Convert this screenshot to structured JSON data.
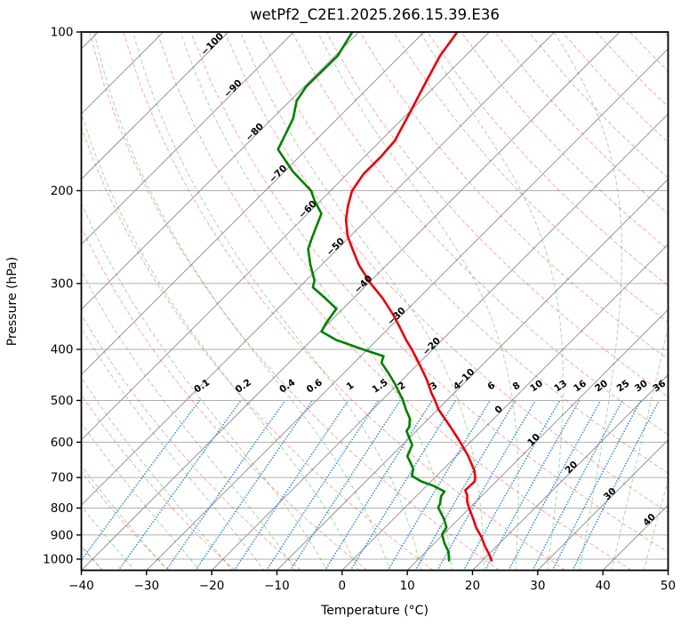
{
  "window": {
    "title": "wetPf2_C2E1.2025.266.15.39.E36"
  },
  "chart_data": {
    "type": "skewt-log-p",
    "title": "wetPf2_C2E1.2025.266.15.39.E36",
    "xlabel": "Temperature (°C)",
    "ylabel": "Pressure (hPa)",
    "xlim": [
      -40,
      50
    ],
    "x_ticks": [
      -40,
      -30,
      -20,
      -10,
      0,
      10,
      20,
      30,
      40,
      50
    ],
    "pressure_lim": [
      100,
      1050
    ],
    "pressure_ticks": [
      100,
      200,
      300,
      400,
      500,
      600,
      700,
      800,
      900,
      1000
    ],
    "grid": true,
    "skew_deg": 45,
    "isotherm_step_c": 10,
    "isotherm_labels": [
      -100,
      -90,
      -80,
      -70,
      -60,
      -50,
      -40,
      -30,
      -20,
      -10,
      0,
      10,
      20,
      30,
      40
    ],
    "dry_adiabats_c_at_1000hpa": {
      "start": -40,
      "end": 200,
      "step": 10
    },
    "moist_adiabats_c_at_1000hpa": {
      "start": -40,
      "end": 50,
      "step": 5
    },
    "mixing_ratio_lines_g_per_kg": [
      0.1,
      0.2,
      0.4,
      0.6,
      1,
      1.5,
      2,
      3,
      4,
      6,
      8,
      10,
      13,
      16,
      20,
      25,
      30,
      36
    ],
    "series": [
      {
        "name": "temperature",
        "color": "#e8000b",
        "points_p_hpa_t_c": [
          [
            100,
            -64.9
          ],
          [
            111,
            -63.9
          ],
          [
            127,
            -61.7
          ],
          [
            144,
            -59.6
          ],
          [
            161,
            -57.8
          ],
          [
            172,
            -57.5
          ],
          [
            186,
            -57.5
          ],
          [
            200,
            -56.7
          ],
          [
            213,
            -55.1
          ],
          [
            227,
            -53.2
          ],
          [
            244,
            -50.4
          ],
          [
            258,
            -47.7
          ],
          [
            277,
            -44.2
          ],
          [
            300,
            -39.6
          ],
          [
            320,
            -35.5
          ],
          [
            343,
            -31.5
          ],
          [
            360,
            -28.9
          ],
          [
            384,
            -25.5
          ],
          [
            400,
            -23.2
          ],
          [
            424,
            -20.1
          ],
          [
            444,
            -17.7
          ],
          [
            459,
            -16.0
          ],
          [
            485,
            -13.4
          ],
          [
            500,
            -11.8
          ],
          [
            520,
            -9.9
          ],
          [
            561,
            -5.4
          ],
          [
            595,
            -2.0
          ],
          [
            636,
            1.7
          ],
          [
            678,
            4.9
          ],
          [
            697,
            6.0
          ],
          [
            712,
            6.7
          ],
          [
            740,
            6.6
          ],
          [
            757,
            7.7
          ],
          [
            777,
            8.6
          ],
          [
            798,
            9.8
          ],
          [
            840,
            12.3
          ],
          [
            873,
            14.1
          ],
          [
            905,
            16.1
          ],
          [
            943,
            18.1
          ],
          [
            981,
            20.2
          ],
          [
            1006,
            21.4
          ]
        ]
      },
      {
        "name": "dewpoint",
        "color": "#007f00",
        "points_p_hpa_t_c": [
          [
            100,
            -81.0
          ],
          [
            111,
            -79.6
          ],
          [
            127,
            -79.7
          ],
          [
            135,
            -79.0
          ],
          [
            146,
            -76.8
          ],
          [
            167,
            -74.4
          ],
          [
            184,
            -68.7
          ],
          [
            200,
            -63.0
          ],
          [
            209,
            -60.9
          ],
          [
            221,
            -57.9
          ],
          [
            246,
            -55.6
          ],
          [
            258,
            -54.5
          ],
          [
            276,
            -51.8
          ],
          [
            296,
            -48.7
          ],
          [
            305,
            -47.9
          ],
          [
            320,
            -44.3
          ],
          [
            335,
            -41.0
          ],
          [
            356,
            -40.4
          ],
          [
            370,
            -39.8
          ],
          [
            384,
            -36.2
          ],
          [
            400,
            -30.7
          ],
          [
            412,
            -26.5
          ],
          [
            424,
            -25.8
          ],
          [
            444,
            -23.1
          ],
          [
            465,
            -20.5
          ],
          [
            485,
            -18.3
          ],
          [
            500,
            -16.7
          ],
          [
            520,
            -14.9
          ],
          [
            541,
            -12.9
          ],
          [
            561,
            -11.7
          ],
          [
            571,
            -11.5
          ],
          [
            582,
            -10.6
          ],
          [
            607,
            -8.5
          ],
          [
            625,
            -7.9
          ],
          [
            638,
            -7.5
          ],
          [
            655,
            -6.1
          ],
          [
            675,
            -4.6
          ],
          [
            695,
            -3.8
          ],
          [
            712,
            -1.5
          ],
          [
            725,
            0.9
          ],
          [
            744,
            3.6
          ],
          [
            759,
            3.8
          ],
          [
            785,
            4.8
          ],
          [
            798,
            5.1
          ],
          [
            840,
            7.8
          ],
          [
            870,
            9.4
          ],
          [
            897,
            9.8
          ],
          [
            932,
            11.5
          ],
          [
            969,
            13.5
          ],
          [
            1006,
            14.9
          ]
        ]
      }
    ],
    "colors": {
      "temperature": "#e8000b",
      "dewpoint": "#007f00",
      "isotherm": "#969696",
      "grid": "#b0b0b0",
      "dry_adiabat": "#ff0000",
      "moist_adiabat": "#008000",
      "mixing_ratio": "#4494df",
      "isotherm_label_negative": "#2878b8",
      "isotherm_label_zero": "#7f7f7f",
      "isotherm_label_positive": "#d62728",
      "mixing_label": "#2878b8",
      "axes": "#000000"
    }
  }
}
